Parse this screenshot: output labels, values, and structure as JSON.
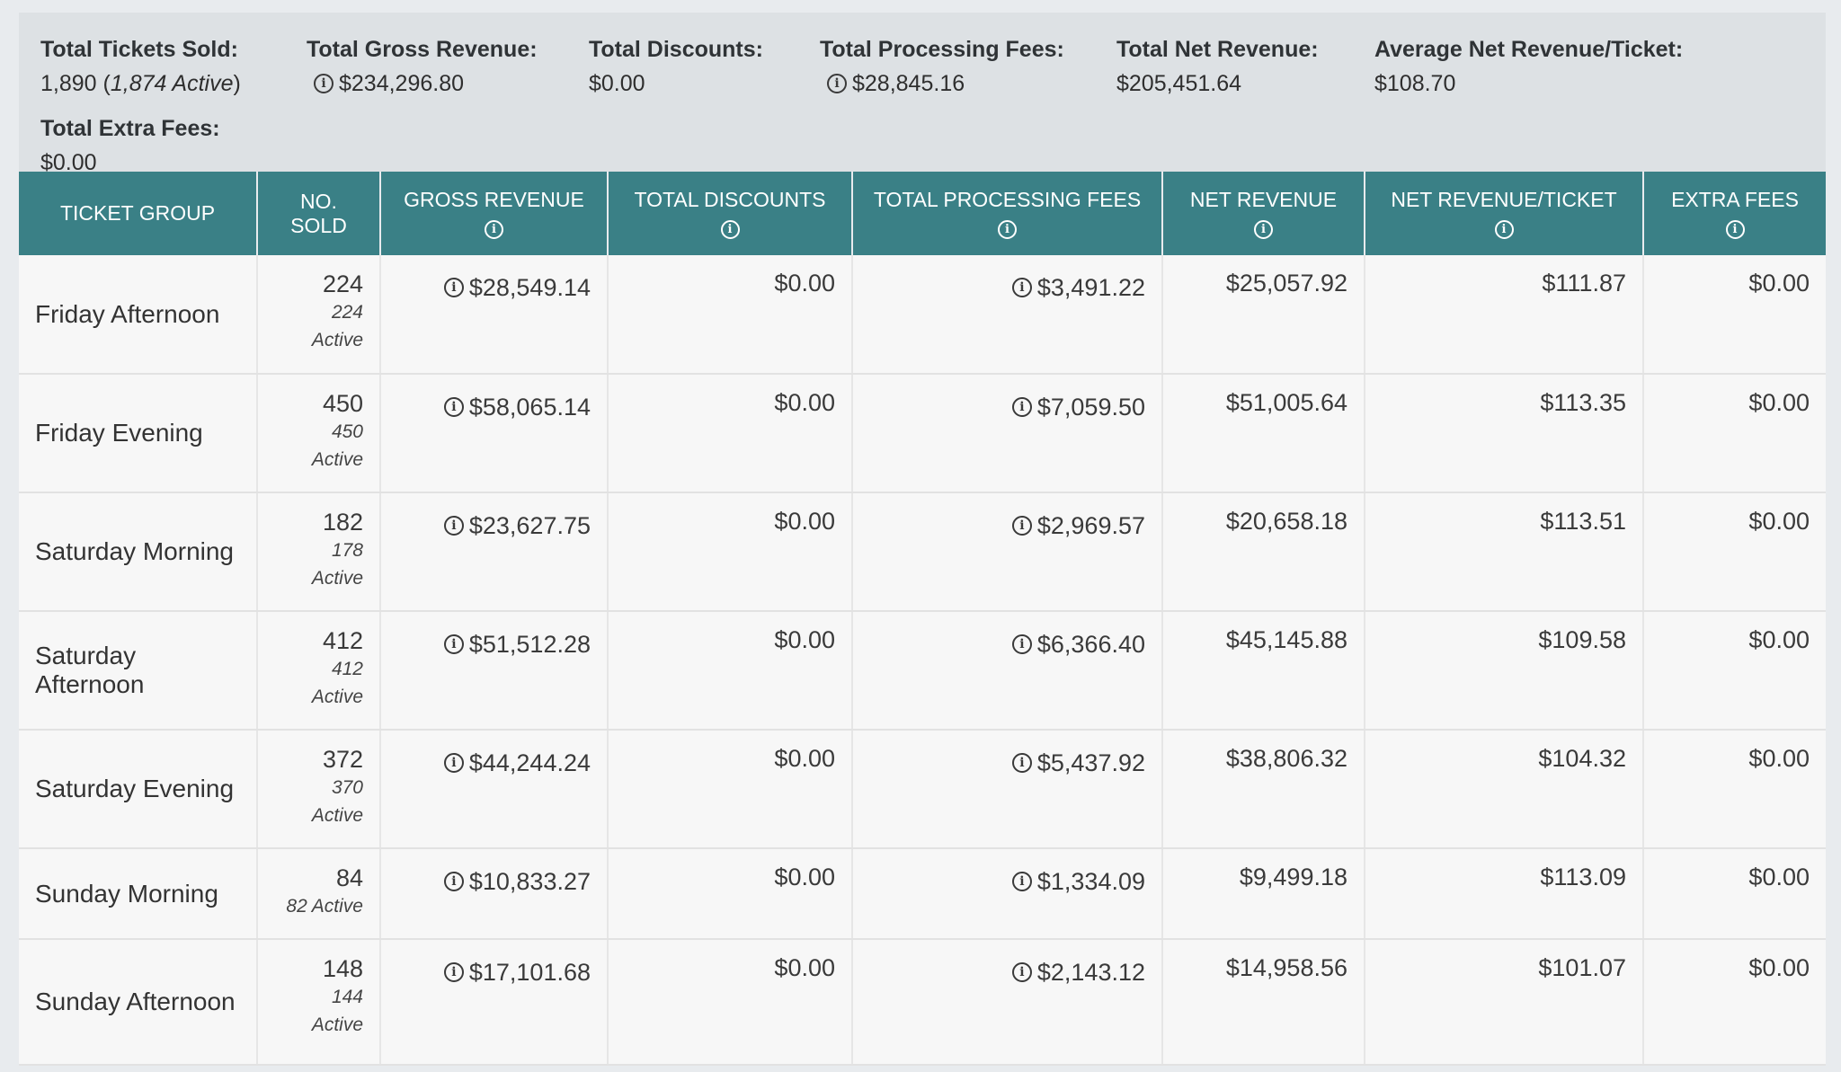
{
  "summary": {
    "tickets_sold": {
      "label": "Total Tickets Sold:",
      "value_main": "1,890 (",
      "value_active": "1,874 Active",
      "value_end": ")"
    },
    "gross_revenue": {
      "label": "Total Gross Revenue:",
      "value": "$234,296.80"
    },
    "discounts": {
      "label": "Total Discounts:",
      "value": "$0.00"
    },
    "processing_fees": {
      "label": "Total Processing Fees:",
      "value": "$28,845.16"
    },
    "net_revenue": {
      "label": "Total Net Revenue:",
      "value": "$205,451.64"
    },
    "avg_net": {
      "label": "Average Net Revenue/Ticket:",
      "value": "$108.70"
    },
    "extra_fees": {
      "label": "Total Extra Fees:",
      "value": "$0.00"
    }
  },
  "columns": {
    "group": "TICKET GROUP",
    "sold_1": "NO.",
    "sold_2": "SOLD",
    "gross": "GROSS REVENUE",
    "discounts": "TOTAL DISCOUNTS",
    "fees": "TOTAL PROCESSING FEES",
    "net": "NET REVENUE",
    "net_per": "NET REVENUE/TICKET",
    "extra": "EXTRA FEES"
  },
  "info_glyph": "i",
  "rows": [
    {
      "group": "Friday Afternoon",
      "sold": "224",
      "active": "224 Active",
      "gross": "$28,549.14",
      "discounts": "$0.00",
      "fees": "$3,491.22",
      "net": "$25,057.92",
      "net_per": "$111.87",
      "extra": "$0.00"
    },
    {
      "group": "Friday Evening",
      "sold": "450",
      "active": "450 Active",
      "gross": "$58,065.14",
      "discounts": "$0.00",
      "fees": "$7,059.50",
      "net": "$51,005.64",
      "net_per": "$113.35",
      "extra": "$0.00"
    },
    {
      "group": "Saturday Morning",
      "sold": "182",
      "active": "178 Active",
      "gross": "$23,627.75",
      "discounts": "$0.00",
      "fees": "$2,969.57",
      "net": "$20,658.18",
      "net_per": "$113.51",
      "extra": "$0.00"
    },
    {
      "group": "Saturday Afternoon",
      "sold": "412",
      "active": "412 Active",
      "gross": "$51,512.28",
      "discounts": "$0.00",
      "fees": "$6,366.40",
      "net": "$45,145.88",
      "net_per": "$109.58",
      "extra": "$0.00"
    },
    {
      "group": "Saturday Evening",
      "sold": "372",
      "active": "370 Active",
      "gross": "$44,244.24",
      "discounts": "$0.00",
      "fees": "$5,437.92",
      "net": "$38,806.32",
      "net_per": "$104.32",
      "extra": "$0.00"
    },
    {
      "group": "Sunday Morning",
      "sold": "84",
      "active": "82 Active",
      "gross": "$10,833.27",
      "discounts": "$0.00",
      "fees": "$1,334.09",
      "net": "$9,499.18",
      "net_per": "$113.09",
      "extra": "$0.00"
    },
    {
      "group": "Sunday Afternoon",
      "sold": "148",
      "active": "144 Active",
      "gross": "$17,101.68",
      "discounts": "$0.00",
      "fees": "$2,143.12",
      "net": "$14,958.56",
      "net_per": "$101.07",
      "extra": "$0.00"
    }
  ],
  "colors": {
    "header_bg": "#3a8086",
    "summary_bg": "#dde1e4",
    "row_bg": "#f7f7f7"
  }
}
